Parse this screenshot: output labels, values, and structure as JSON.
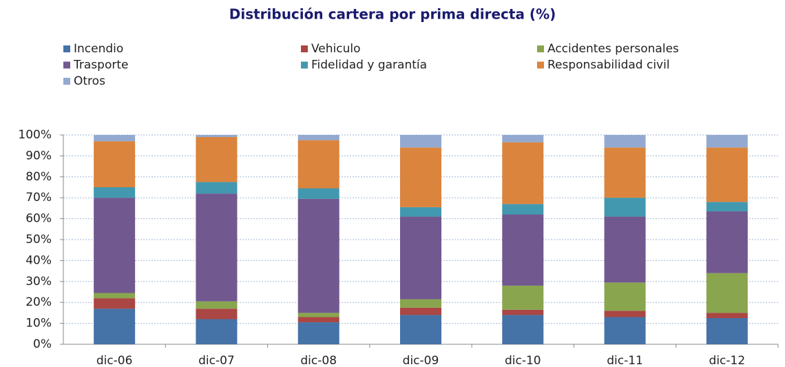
{
  "chart_data": {
    "type": "stacked_bar",
    "title": "Distribución cartera por prima directa (%)",
    "categories": [
      "dic-06",
      "dic-07",
      "dic-08",
      "dic-09",
      "dic-10",
      "dic-11",
      "dic-12"
    ],
    "series": [
      {
        "name": "Incendio",
        "color": "#4572a7",
        "values": [
          17,
          12,
          10.5,
          14,
          14,
          13,
          12.5
        ]
      },
      {
        "name": "Vehiculo",
        "color": "#aa4643",
        "values": [
          5,
          5,
          2.5,
          3.5,
          2.5,
          3,
          2.5
        ]
      },
      {
        "name": "Accidentes personales",
        "color": "#89a54e",
        "values": [
          2.5,
          3.5,
          2,
          4,
          11.5,
          13.5,
          19
        ]
      },
      {
        "name": "Trasporte",
        "color": "#71588f",
        "values": [
          45.5,
          51.5,
          54.5,
          39.5,
          34,
          31.5,
          29.5
        ]
      },
      {
        "name": "Fidelidad y garantía",
        "color": "#4198af",
        "values": [
          5,
          5.5,
          5,
          4.5,
          5,
          9,
          4.5
        ]
      },
      {
        "name": "Responsabilidad civil",
        "color": "#db843d",
        "values": [
          22,
          21.5,
          23,
          28.5,
          29.5,
          24,
          26
        ]
      },
      {
        "name": "Otros",
        "color": "#93a9cf",
        "values": [
          3,
          1,
          2.5,
          6,
          3.5,
          6,
          6
        ]
      }
    ],
    "ylim": [
      0,
      100
    ],
    "yticks": [
      {
        "value": 0,
        "label": "0%"
      },
      {
        "value": 10,
        "label": "10%"
      },
      {
        "value": 20,
        "label": "20%"
      },
      {
        "value": 30,
        "label": "30%"
      },
      {
        "value": 40,
        "label": "40%"
      },
      {
        "value": 50,
        "label": "50%"
      },
      {
        "value": 60,
        "label": "60%"
      },
      {
        "value": 70,
        "label": "70%"
      },
      {
        "value": 80,
        "label": "80%"
      },
      {
        "value": 90,
        "label": "90%"
      },
      {
        "value": 100,
        "label": "100%"
      }
    ],
    "grid": true,
    "legend": "top"
  }
}
